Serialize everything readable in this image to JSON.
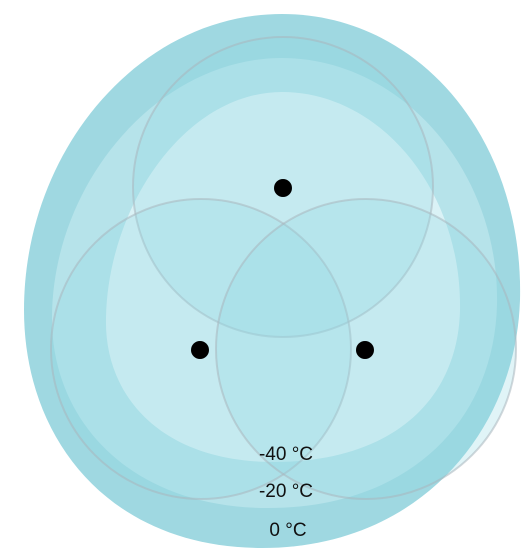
{
  "diagram": {
    "temperature_labels": {
      "inner": "-40 °C",
      "middle": "-20 °C",
      "outer": "0 °C"
    },
    "colors": {
      "zone_outer": "#9fd8e1",
      "zone_middle": "#b6e3ea",
      "zone_inner": "#daf2f6",
      "circle_fill": "#8fd7e3",
      "circle_stroke": "#aab7be",
      "dot": "#000000"
    }
  }
}
